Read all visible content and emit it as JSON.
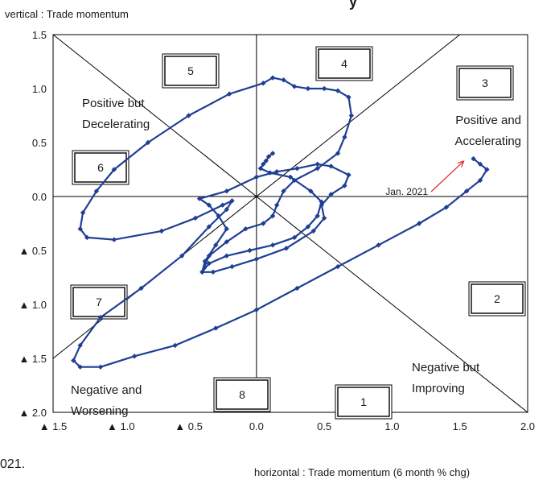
{
  "chart_data": {
    "type": "line",
    "title_fragment_top": "y",
    "footnote_fragment": "021.",
    "y_axis_title": "vertical : Trade momentum",
    "x_axis_title": "horizontal : Trade momentum (6 month % chg)",
    "xlim": [
      -1.5,
      2.0
    ],
    "ylim": [
      -2.0,
      1.5
    ],
    "x_ticks": [
      -1.5,
      -1.0,
      -0.5,
      0.0,
      0.5,
      1.0,
      1.5,
      2.0
    ],
    "x_tick_labels": [
      "▲ 1.5",
      "▲ 1.0",
      "▲ 0.5",
      "0.0",
      "0.5",
      "1.0",
      "1.5",
      "2.0"
    ],
    "y_ticks": [
      1.5,
      1.0,
      0.5,
      0.0,
      -0.5,
      -1.0,
      -1.5,
      -2.0
    ],
    "y_tick_labels": [
      "1.5",
      "1.0",
      "0.5",
      "0.0",
      "▲ 0.5",
      "▲ 1.0",
      "▲ 1.5",
      "▲ 2.0"
    ],
    "grid": false,
    "line_color": "#1f3f94",
    "annotation_color": "#e0282c",
    "region_labels": {
      "q4_top_left": [
        "Positive but",
        "Decelerating"
      ],
      "q2_top_right": [
        "Positive and",
        "Accelerating"
      ],
      "q_bottom_right": [
        "Negative but",
        "Improving"
      ],
      "q_bottom_left": [
        "Negative and",
        "Worsening"
      ]
    },
    "zone_boxes": [
      "1",
      "2",
      "3",
      "4",
      "5",
      "6",
      "7",
      "8"
    ],
    "annotation_label": "Jan. 2021",
    "series": [
      {
        "points": [
          [
            0.12,
            0.4
          ],
          [
            0.09,
            0.37
          ],
          [
            0.07,
            0.33
          ],
          [
            0.05,
            0.3
          ],
          [
            0.03,
            0.26
          ],
          [
            0.1,
            0.22
          ],
          [
            0.25,
            0.18
          ],
          [
            0.4,
            0.05
          ],
          [
            0.48,
            -0.05
          ],
          [
            0.45,
            -0.18
          ],
          [
            0.38,
            -0.28
          ],
          [
            0.28,
            -0.38
          ],
          [
            0.12,
            -0.45
          ],
          [
            -0.05,
            -0.5
          ],
          [
            -0.22,
            -0.55
          ],
          [
            -0.35,
            -0.62
          ],
          [
            -0.4,
            -0.7
          ],
          [
            -0.38,
            -0.6
          ],
          [
            -0.3,
            -0.45
          ],
          [
            -0.22,
            -0.3
          ],
          [
            -0.28,
            -0.18
          ],
          [
            -0.35,
            -0.08
          ],
          [
            -0.42,
            -0.02
          ],
          [
            -0.22,
            0.05
          ],
          [
            0.0,
            0.18
          ],
          [
            0.15,
            0.23
          ],
          [
            0.3,
            0.26
          ],
          [
            0.45,
            0.3
          ],
          [
            0.55,
            0.28
          ],
          [
            0.68,
            0.2
          ],
          [
            0.65,
            0.1
          ],
          [
            0.55,
            0.02
          ],
          [
            0.48,
            -0.08
          ],
          [
            0.5,
            -0.2
          ],
          [
            0.42,
            -0.32
          ],
          [
            0.22,
            -0.48
          ],
          [
            0.0,
            -0.58
          ],
          [
            -0.18,
            -0.65
          ],
          [
            -0.32,
            -0.7
          ],
          [
            -0.4,
            -0.7
          ],
          [
            -0.35,
            -0.55
          ],
          [
            -0.22,
            -0.42
          ],
          [
            -0.08,
            -0.3
          ],
          [
            0.05,
            -0.25
          ],
          [
            0.12,
            -0.18
          ],
          [
            0.15,
            -0.08
          ],
          [
            0.2,
            0.05
          ],
          [
            0.28,
            0.15
          ],
          [
            0.45,
            0.26
          ],
          [
            0.6,
            0.4
          ],
          [
            0.65,
            0.55
          ],
          [
            0.7,
            0.75
          ],
          [
            0.68,
            0.92
          ],
          [
            0.6,
            0.98
          ],
          [
            0.5,
            1.0
          ],
          [
            0.38,
            1.0
          ],
          [
            0.28,
            1.02
          ],
          [
            0.2,
            1.08
          ],
          [
            0.12,
            1.1
          ],
          [
            0.05,
            1.05
          ],
          [
            -0.2,
            0.95
          ],
          [
            -0.5,
            0.75
          ],
          [
            -0.8,
            0.5
          ],
          [
            -1.05,
            0.25
          ],
          [
            -1.18,
            0.05
          ],
          [
            -1.28,
            -0.15
          ],
          [
            -1.3,
            -0.3
          ],
          [
            -1.25,
            -0.38
          ],
          [
            -1.05,
            -0.4
          ],
          [
            -0.7,
            -0.32
          ],
          [
            -0.45,
            -0.2
          ],
          [
            -0.25,
            -0.08
          ],
          [
            -0.18,
            -0.04
          ],
          [
            -0.22,
            -0.12
          ],
          [
            -0.35,
            -0.28
          ],
          [
            -0.55,
            -0.55
          ],
          [
            -0.85,
            -0.85
          ],
          [
            -1.15,
            -1.12
          ],
          [
            -1.3,
            -1.38
          ],
          [
            -1.35,
            -1.52
          ],
          [
            -1.3,
            -1.58
          ],
          [
            -1.15,
            -1.58
          ],
          [
            -0.9,
            -1.48
          ],
          [
            -0.6,
            -1.38
          ],
          [
            -0.3,
            -1.22
          ],
          [
            0.0,
            -1.05
          ],
          [
            0.3,
            -0.85
          ],
          [
            0.6,
            -0.65
          ],
          [
            0.9,
            -0.45
          ],
          [
            1.2,
            -0.25
          ],
          [
            1.4,
            -0.1
          ],
          [
            1.55,
            0.05
          ],
          [
            1.65,
            0.15
          ],
          [
            1.7,
            0.25
          ],
          [
            1.65,
            0.3
          ],
          [
            1.6,
            0.35
          ]
        ]
      }
    ]
  }
}
